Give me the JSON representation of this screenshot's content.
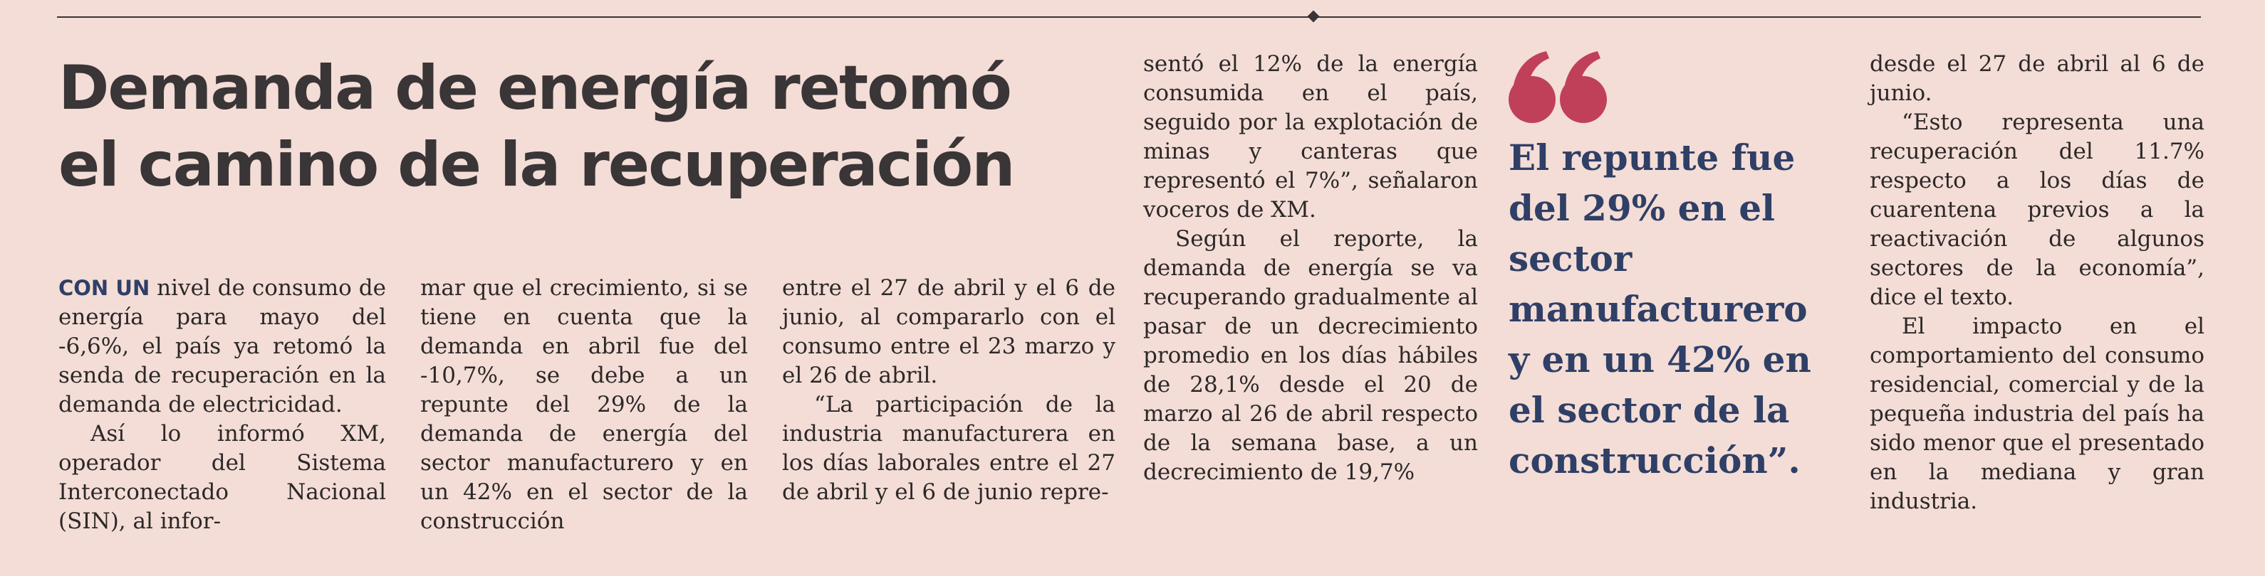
{
  "headline": {
    "line1": "Demanda de energía retomó",
    "line2": "el camino de la recuperación"
  },
  "columns": {
    "c1": {
      "lead": "CON UN",
      "p1_rest": "nivel de consumo de energía para mayo del -6,6%, el país ya retomó la senda de recuperación en la demanda de electricidad.",
      "p2": "Así lo informó XM, operador del Sistema Interconectado Nacional (SIN), al infor-"
    },
    "c2": {
      "p1": "mar que el crecimiento, si se tiene en cuenta que la demanda en abril fue del -10,7%, se debe a un repunte del 29% de la demanda de energía del sector manufacturero y en un 42% en el sector de la construcción"
    },
    "c3": {
      "p1": "entre el 27 de abril y el 6 de junio, al compararlo con el consumo entre el 23 marzo y el 26 de abril.",
      "p2": "“La participación de la industria manufacturera en los días laborales entre el 27 de abril y el 6 de junio repre-"
    },
    "c4": {
      "p1": "sentó el 12% de la energía consumida en el país, seguido por la explotación de minas y canteras que representó el 7%”, señalaron voceros de XM.",
      "p2": "Según el reporte, la demanda de energía se va recuperando gradualmente al pasar de un decrecimiento promedio en los días hábiles de 28,1% desde el 20 de marzo al 26 de abril respecto de la semana base, a un decrecimiento de 19,7%"
    },
    "c6": {
      "p1": "desde el 27 de abril al 6 de junio.",
      "p2": "“Esto representa una recuperación del 11.7% respecto a los días de cuarentena previos a la reactivación de algunos sectores de la economía”, dice el texto.",
      "p3": "El impacto en el comportamiento del consumo residencial, comercial y de la pequeña industria del país ha sido menor que el presentado en la mediana y gran industria."
    }
  },
  "pull_quote": {
    "lines": [
      "El repunte fue",
      "del 29% en el",
      "sector",
      "manufacturero",
      "y en un 42% en",
      "el sector de la",
      "construcción”."
    ],
    "accent_color": "#c0405a",
    "text_color": "#2f3f66"
  }
}
